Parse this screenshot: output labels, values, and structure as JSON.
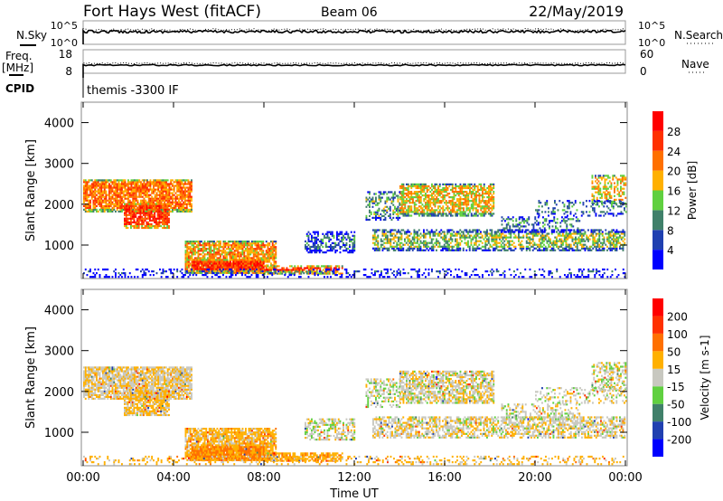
{
  "header": {
    "title": "Fort Hays West (fitACF)",
    "beam": "Beam 06",
    "date": "22/May/2019"
  },
  "nsky_panel": {
    "left_label": "N.Sky",
    "right_label": "N.Search",
    "ticks_left": [
      "10^5",
      "10^0"
    ],
    "ticks_right": [
      "10^5",
      "10^0"
    ]
  },
  "freq_panel": {
    "left_label1": "Freq.",
    "left_label2": "[MHz]",
    "right_label": "Nave",
    "ticks_left": [
      "18",
      "8"
    ],
    "ticks_right": [
      "60",
      "0"
    ]
  },
  "cpid": {
    "label": "CPID",
    "value": "themis -3300 IF"
  },
  "chart_data": [
    {
      "type": "heatmap",
      "name": "power",
      "ylabel": "Slant Range [km]",
      "ylim": [
        180,
        4500
      ],
      "xlim": [
        0,
        24
      ],
      "yticks": [
        "1000",
        "2000",
        "3000",
        "4000"
      ],
      "xticks": [
        "00:00",
        "04:00",
        "08:00",
        "12:00",
        "16:00",
        "20:00",
        "00:00"
      ],
      "colorbar": {
        "label": "Power [dB]",
        "ticks": [
          "4",
          "8",
          "12",
          "16",
          "20",
          "24",
          "28"
        ],
        "colors": [
          "#0000ff",
          "#2040b0",
          "#40806a",
          "#60d040",
          "#ffb000",
          "#ff7000",
          "#ff3000",
          "#ff0000"
        ]
      }
    },
    {
      "type": "heatmap",
      "name": "velocity",
      "ylabel": "Slant Range [km]",
      "xlabel": "Time UT",
      "ylim": [
        180,
        4500
      ],
      "xlim": [
        0,
        24
      ],
      "yticks": [
        "1000",
        "2000",
        "3000",
        "4000"
      ],
      "xticks": [
        "00:00",
        "04:00",
        "08:00",
        "12:00",
        "16:00",
        "20:00",
        "00:00"
      ],
      "colorbar": {
        "label": "Velocity [m s-1]",
        "ticks": [
          "200",
          "100",
          "50",
          "15",
          "-15",
          "-50",
          "-100",
          "-200"
        ],
        "colors": [
          "#0000ff",
          "#2040b0",
          "#40806a",
          "#60d040",
          "#c8c8c0",
          "#ffb000",
          "#ff7000",
          "#ff3000",
          "#ff0000"
        ]
      }
    }
  ],
  "regions_note": "hour_start,hour_end,range_low_km,range_high_km,mean_power_dB,mean_velocity_ms,density",
  "regions": [
    [
      0,
      4.8,
      1800,
      2600,
      22,
      -10,
      0.85
    ],
    [
      1.8,
      3.8,
      1400,
      2000,
      26,
      -20,
      0.8
    ],
    [
      4.5,
      8.5,
      300,
      1100,
      20,
      -30,
      0.8
    ],
    [
      4.8,
      8,
      300,
      650,
      27,
      -60,
      0.9
    ],
    [
      8,
      11.5,
      280,
      500,
      25,
      -40,
      0.7
    ],
    [
      9.8,
      12,
      800,
      1300,
      8,
      0,
      0.55
    ],
    [
      12.8,
      24,
      850,
      1350,
      14,
      -5,
      0.6
    ],
    [
      14,
      18.2,
      1700,
      2500,
      18,
      -5,
      0.7
    ],
    [
      12.5,
      14,
      1600,
      2300,
      12,
      5,
      0.45
    ],
    [
      18.5,
      22,
      1300,
      1700,
      9,
      0,
      0.35
    ],
    [
      22.5,
      24,
      2000,
      2700,
      18,
      0,
      0.55
    ],
    [
      20,
      24,
      1700,
      2100,
      10,
      0,
      0.3
    ],
    [
      0,
      24,
      200,
      420,
      6,
      -30,
      0.25
    ]
  ]
}
